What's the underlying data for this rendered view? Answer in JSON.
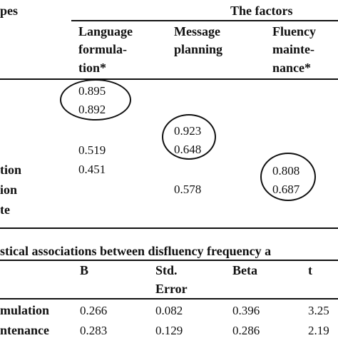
{
  "table1": {
    "header_left": "pes",
    "factors_label": "The factors",
    "columns": [
      {
        "line1": "Language",
        "line2": "formula-",
        "line3": "tion*"
      },
      {
        "line1": "Message",
        "line2": "planning"
      },
      {
        "line1": "Fluency",
        "line2": "mainte-",
        "line3": "nance*"
      }
    ],
    "row_labels": [
      "tion",
      "ion",
      "te"
    ],
    "values": {
      "lang_1": "0.895",
      "lang_2": "0.892",
      "lang_3": "0.519",
      "lang_4": "0.451",
      "msg_1": "0.923",
      "msg_2": "0.648",
      "msg_3": "0.578",
      "flu_1": "0.808",
      "flu_2": "0.687"
    }
  },
  "table2": {
    "caption": "stical associations between disfluency frequency a",
    "headers": {
      "b": "B",
      "se_line1": "Std.",
      "se_line2": "Error",
      "beta": "Beta",
      "t": "t"
    },
    "rows": [
      {
        "label": "mulation",
        "b": "0.266",
        "se": "0.082",
        "beta": "0.396",
        "t": "3.25"
      },
      {
        "label": "ntenance",
        "b": "0.283",
        "se": "0.129",
        "beta": "0.286",
        "t": "2.19"
      }
    ]
  }
}
